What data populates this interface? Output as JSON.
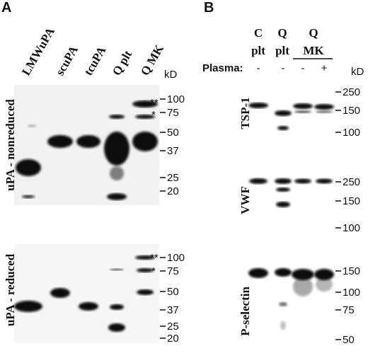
{
  "panels": [
    {
      "label": "A",
      "lanes": [
        "LMWuPA",
        "scuPA",
        "tcuPA",
        "Q plt",
        "Q MK"
      ],
      "unit": "kD",
      "blots": [
        {
          "label": "uPA - nonreduced",
          "markers": [
            100,
            75,
            50,
            37,
            25,
            20
          ],
          "annotations": [
            "**",
            "*"
          ]
        },
        {
          "label": "uPA - reduced",
          "markers": [
            100,
            75,
            50,
            37,
            25,
            20
          ],
          "annotations": [
            "**",
            "*"
          ]
        }
      ]
    },
    {
      "label": "B",
      "columns": [
        {
          "top": "C",
          "bottom": "plt"
        },
        {
          "top": "Q",
          "bottom": "plt"
        },
        {
          "top": "Q",
          "bottom": "MK"
        }
      ],
      "plasma_label": "Plasma:",
      "plasma": [
        "-",
        "-",
        "-",
        "+"
      ],
      "unit": "kD",
      "blots": [
        {
          "label": "TSP-1",
          "markers": [
            250,
            150,
            100
          ]
        },
        {
          "label": "VWF",
          "markers": [
            250,
            150,
            100
          ]
        },
        {
          "label": "P-selectin",
          "markers": [
            150,
            100,
            75,
            50
          ]
        }
      ]
    }
  ]
}
